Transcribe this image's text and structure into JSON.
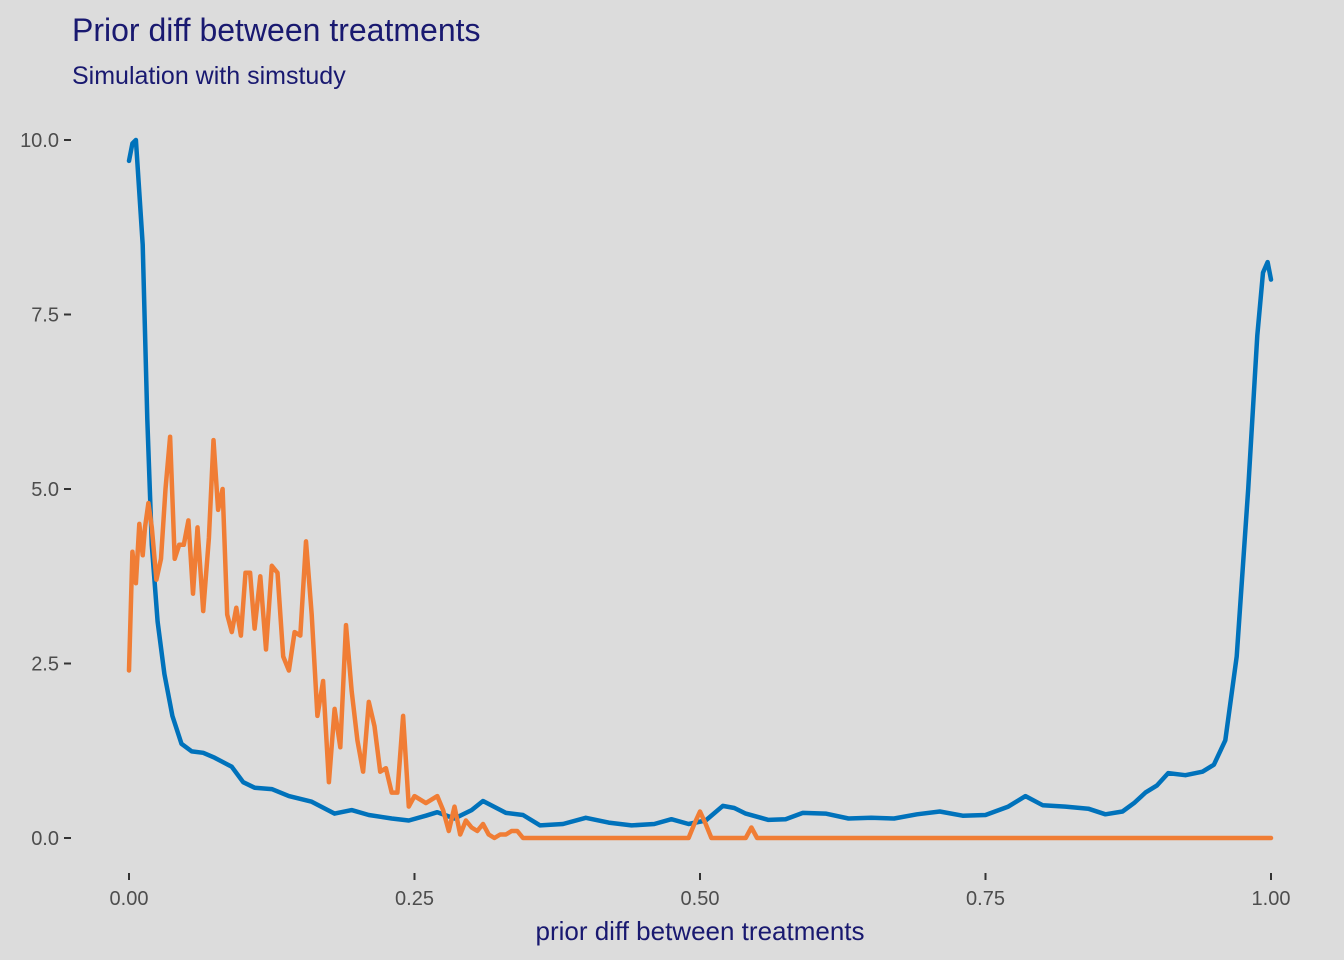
{
  "chart_data": {
    "type": "line",
    "title": "Prior diff between treatments",
    "subtitle": "Simulation with simstudy",
    "xlabel": "prior diff between treatments",
    "ylabel": "",
    "xlim": [
      0,
      1
    ],
    "ylim": [
      0,
      10
    ],
    "x_ticks": [
      "0.00",
      "0.25",
      "0.50",
      "0.75",
      "1.00"
    ],
    "y_ticks": [
      "0.0",
      "2.5",
      "5.0",
      "7.5",
      "10.0"
    ],
    "grid": false,
    "legend": "none",
    "series": [
      {
        "color": "#0072BB",
        "x": [
          0.0,
          0.003,
          0.006,
          0.012,
          0.016,
          0.02,
          0.025,
          0.031,
          0.038,
          0.046,
          0.055,
          0.065,
          0.075,
          0.09,
          0.1,
          0.11,
          0.125,
          0.14,
          0.16,
          0.18,
          0.195,
          0.21,
          0.23,
          0.245,
          0.26,
          0.27,
          0.285,
          0.3,
          0.31,
          0.33,
          0.345,
          0.36,
          0.38,
          0.4,
          0.42,
          0.44,
          0.46,
          0.475,
          0.49,
          0.505,
          0.52,
          0.53,
          0.54,
          0.56,
          0.575,
          0.59,
          0.61,
          0.63,
          0.65,
          0.67,
          0.69,
          0.71,
          0.73,
          0.75,
          0.77,
          0.785,
          0.8,
          0.82,
          0.84,
          0.855,
          0.87,
          0.88,
          0.89,
          0.9,
          0.91,
          0.925,
          0.94,
          0.95,
          0.96,
          0.97,
          0.98,
          0.988,
          0.993,
          0.997,
          1.0
        ],
        "y": [
          9.7,
          9.95,
          10.0,
          8.5,
          6.0,
          4.2,
          3.1,
          2.35,
          1.75,
          1.35,
          1.24,
          1.22,
          1.15,
          1.02,
          0.8,
          0.72,
          0.7,
          0.6,
          0.52,
          0.35,
          0.4,
          0.33,
          0.28,
          0.25,
          0.32,
          0.37,
          0.28,
          0.4,
          0.53,
          0.36,
          0.33,
          0.18,
          0.2,
          0.29,
          0.22,
          0.18,
          0.2,
          0.27,
          0.2,
          0.25,
          0.46,
          0.43,
          0.35,
          0.26,
          0.27,
          0.36,
          0.35,
          0.28,
          0.29,
          0.28,
          0.34,
          0.38,
          0.32,
          0.33,
          0.45,
          0.6,
          0.47,
          0.45,
          0.42,
          0.34,
          0.38,
          0.5,
          0.65,
          0.75,
          0.93,
          0.9,
          0.95,
          1.05,
          1.4,
          2.6,
          5.0,
          7.2,
          8.1,
          8.25,
          8.0
        ]
      },
      {
        "color": "#F07D35",
        "x": [
          0.0,
          0.003,
          0.006,
          0.009,
          0.012,
          0.014,
          0.017,
          0.02,
          0.024,
          0.028,
          0.032,
          0.036,
          0.04,
          0.044,
          0.048,
          0.052,
          0.056,
          0.06,
          0.065,
          0.07,
          0.074,
          0.078,
          0.082,
          0.086,
          0.09,
          0.094,
          0.098,
          0.102,
          0.106,
          0.11,
          0.115,
          0.12,
          0.125,
          0.13,
          0.135,
          0.14,
          0.145,
          0.15,
          0.155,
          0.16,
          0.165,
          0.17,
          0.175,
          0.18,
          0.185,
          0.19,
          0.195,
          0.2,
          0.205,
          0.21,
          0.215,
          0.22,
          0.225,
          0.23,
          0.235,
          0.24,
          0.245,
          0.25,
          0.255,
          0.26,
          0.265,
          0.27,
          0.275,
          0.28,
          0.285,
          0.29,
          0.295,
          0.3,
          0.305,
          0.31,
          0.315,
          0.32,
          0.325,
          0.33,
          0.335,
          0.34,
          0.345,
          0.35,
          0.355,
          0.36,
          0.365,
          0.37,
          0.375,
          0.38,
          0.385,
          0.39,
          0.395,
          0.4,
          0.405,
          0.41,
          0.415,
          0.42,
          0.425,
          0.43,
          0.435,
          0.44,
          0.445,
          0.45,
          0.455,
          0.46,
          0.47,
          0.48,
          0.49,
          0.495,
          0.5,
          0.505,
          0.51,
          0.515,
          0.52,
          0.53,
          0.54,
          0.545,
          0.55,
          0.555,
          0.6,
          0.7,
          0.8,
          0.9,
          1.0
        ],
        "y": [
          2.4,
          4.1,
          3.65,
          4.5,
          4.05,
          4.45,
          4.8,
          4.45,
          3.7,
          4.0,
          5.0,
          5.75,
          4.0,
          4.2,
          4.2,
          4.55,
          3.5,
          4.45,
          3.25,
          4.3,
          5.7,
          4.7,
          5.0,
          3.2,
          2.95,
          3.3,
          2.9,
          3.8,
          3.8,
          3.0,
          3.75,
          2.7,
          3.9,
          3.8,
          2.6,
          2.4,
          2.95,
          2.9,
          4.25,
          3.2,
          1.75,
          2.25,
          0.8,
          1.85,
          1.3,
          3.05,
          2.1,
          1.4,
          0.95,
          1.95,
          1.6,
          0.95,
          1.0,
          0.65,
          0.65,
          1.75,
          0.45,
          0.6,
          0.55,
          0.5,
          0.55,
          0.6,
          0.4,
          0.1,
          0.45,
          0.05,
          0.25,
          0.15,
          0.1,
          0.2,
          0.05,
          0.0,
          0.05,
          0.05,
          0.1,
          0.1,
          0.0,
          0.0,
          0.0,
          0.0,
          0.0,
          0.0,
          0.0,
          0.0,
          0.0,
          0.0,
          0.0,
          0.0,
          0.0,
          0.0,
          0.0,
          0.0,
          0.0,
          0.0,
          0.0,
          0.0,
          0.0,
          0.0,
          0.0,
          0.0,
          0.0,
          0.0,
          0.0,
          0.2,
          0.38,
          0.2,
          0.0,
          0.0,
          0.0,
          0.0,
          0.0,
          0.15,
          0.0,
          0.0,
          0.0,
          0.0,
          0.0,
          0.0,
          0.0
        ]
      }
    ]
  }
}
